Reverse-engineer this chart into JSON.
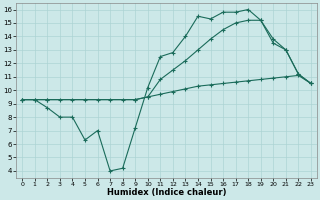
{
  "xlabel": "Humidex (Indice chaleur)",
  "bg_color": "#cce8e8",
  "line_color": "#1a6b5a",
  "grid_color": "#add4d4",
  "xlim": [
    -0.5,
    23.5
  ],
  "ylim": [
    3.5,
    16.5
  ],
  "xticks": [
    0,
    1,
    2,
    3,
    4,
    5,
    6,
    7,
    8,
    9,
    10,
    11,
    12,
    13,
    14,
    15,
    16,
    17,
    18,
    19,
    20,
    21,
    22,
    23
  ],
  "yticks": [
    4,
    5,
    6,
    7,
    8,
    9,
    10,
    11,
    12,
    13,
    14,
    15,
    16
  ],
  "line1_x": [
    0,
    1,
    2,
    3,
    4,
    5,
    6,
    7,
    8,
    9,
    10,
    11,
    12,
    13,
    14,
    15,
    16,
    17,
    18,
    19,
    20,
    21,
    22,
    23
  ],
  "line1_y": [
    9.3,
    9.3,
    8.7,
    8.0,
    8.0,
    6.3,
    7.0,
    4.0,
    4.2,
    7.2,
    10.2,
    12.5,
    12.8,
    14.0,
    15.5,
    15.3,
    15.8,
    15.8,
    16.0,
    15.2,
    13.5,
    13.0,
    11.2,
    10.5
  ],
  "line2_x": [
    0,
    1,
    2,
    3,
    4,
    5,
    6,
    7,
    8,
    9,
    10,
    11,
    12,
    13,
    14,
    15,
    16,
    17,
    18,
    19,
    20,
    21,
    22,
    23
  ],
  "line2_y": [
    9.3,
    9.3,
    9.3,
    9.3,
    9.3,
    9.3,
    9.3,
    9.3,
    9.3,
    9.3,
    9.5,
    9.7,
    9.9,
    10.1,
    10.3,
    10.4,
    10.5,
    10.6,
    10.7,
    10.8,
    10.9,
    11.0,
    11.1,
    10.5
  ],
  "line3_x": [
    0,
    2,
    9,
    10,
    11,
    12,
    13,
    14,
    15,
    16,
    17,
    18,
    19,
    20,
    21,
    22,
    23
  ],
  "line3_y": [
    9.3,
    9.3,
    9.3,
    9.5,
    10.8,
    11.5,
    12.2,
    13.0,
    13.8,
    14.5,
    15.0,
    15.2,
    15.2,
    13.8,
    13.0,
    11.2,
    10.5
  ]
}
